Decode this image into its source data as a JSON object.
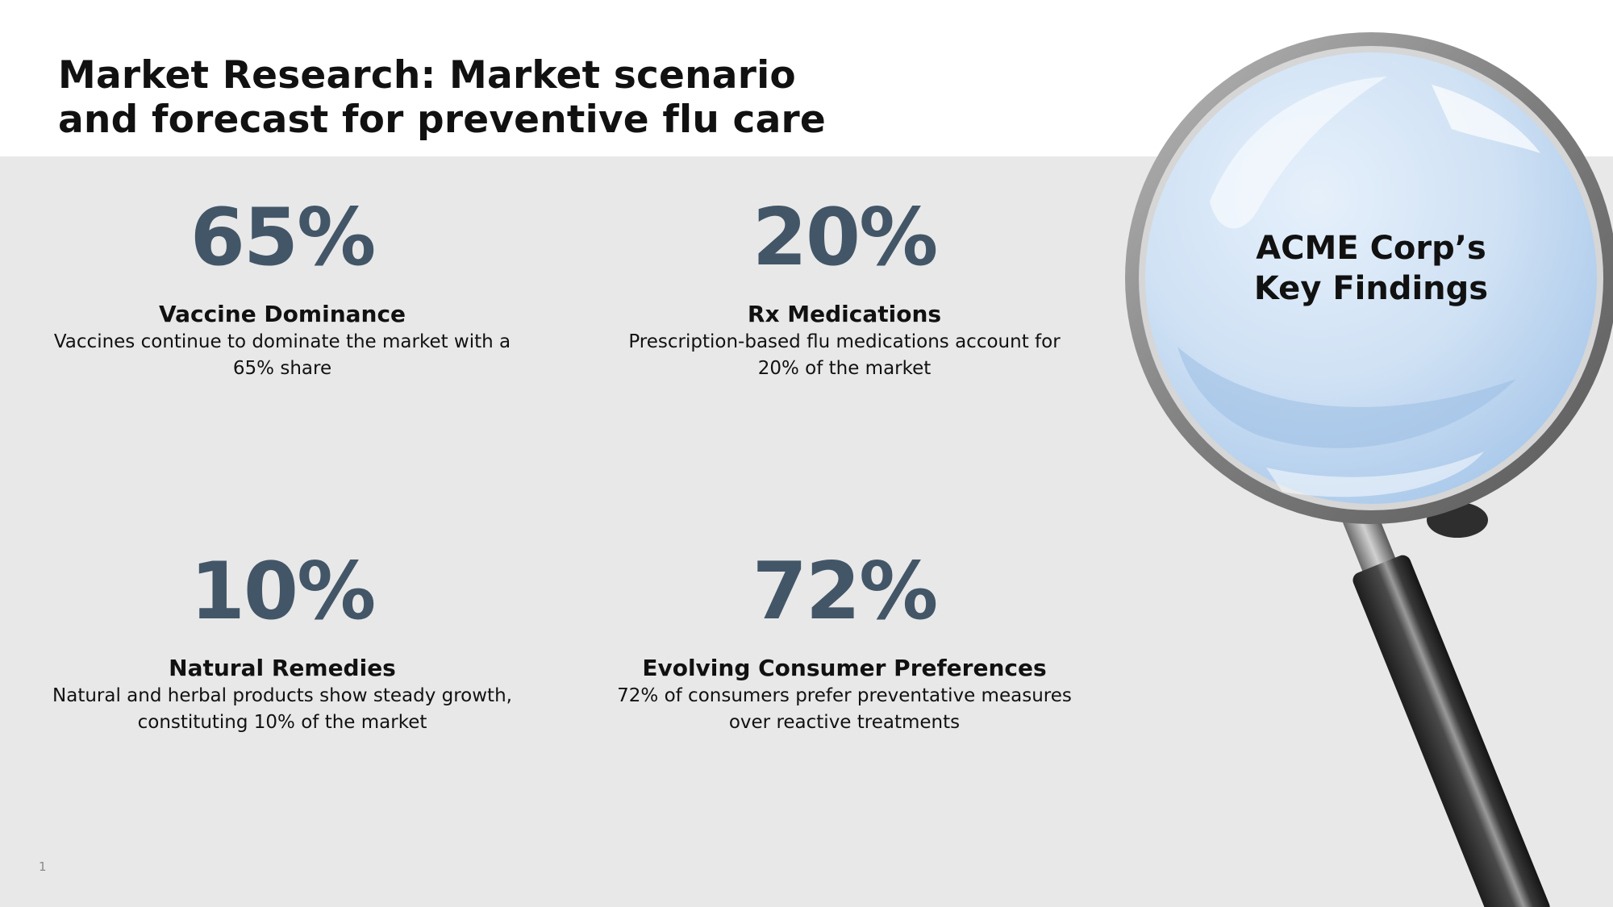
{
  "slide": {
    "title_line1": "Market Research: Market scenario",
    "title_line2": "and forecast for preventive flu care",
    "page_number": "1"
  },
  "stats": [
    {
      "value": "65%",
      "heading": "Vaccine Dominance",
      "description": "Vaccines continue to dominate the market with a 65% share"
    },
    {
      "value": "20%",
      "heading": "Rx Medications",
      "description": "Prescription-based flu medications account for 20% of the market"
    },
    {
      "value": "10%",
      "heading": "Natural Remedies",
      "description": "Natural and herbal products show steady growth, constituting 10% of the market"
    },
    {
      "value": "72%",
      "heading": "Evolving Consumer Preferences",
      "description": "72% of consumers prefer preventative measures over reactive treatments"
    }
  ],
  "callout": {
    "line1": "ACME Corp’s",
    "line2": "Key Findings"
  },
  "colors": {
    "stat_value": "#435668",
    "band_background": "#e8e8e8",
    "lens": "#c5dcf2"
  },
  "icons": {
    "magnifier": "magnifying-glass-icon"
  }
}
